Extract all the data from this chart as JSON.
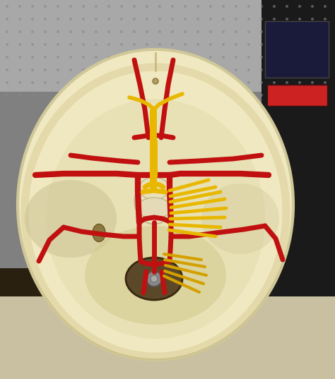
{
  "bg_top_color": "#b0b0b0",
  "bg_bottom_left": "#3a3020",
  "bg_bottom_right": "#2a2a1a",
  "skull_color": "#f0e8c8",
  "skull_shadow": "#c8b890",
  "artery_color": "#c01010",
  "artery_color2": "#a01010",
  "nerve_yellow": "#e8b800",
  "nerve_yellow2": "#d4a000",
  "foramen_color": "#6b5a3e",
  "brainstem_color": "#e8dfc0",
  "fig_w": 4.74,
  "fig_h": 5.37,
  "dpi": 100
}
